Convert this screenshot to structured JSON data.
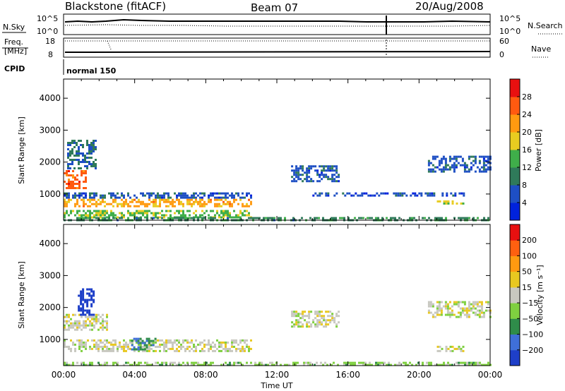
{
  "header": {
    "station": "Blackstone (fitACF)",
    "beam": "Beam 07",
    "date": "20/Aug/2008"
  },
  "top_panels": {
    "nsky_label": "N.Sky",
    "nsearch_label": "N.Search",
    "noise_ticks_left": [
      "10^5",
      "10^0"
    ],
    "noise_ticks_right": [
      "10^5",
      "10^0"
    ],
    "freq_label_line1": "Freq.",
    "freq_label_line2": "[MHz]",
    "freq_ticks": [
      "18",
      "8"
    ],
    "nave_label": "Nave",
    "nave_ticks": [
      "60",
      "0"
    ],
    "cpid_label": "CPID",
    "cpid_value": "normal 150"
  },
  "power_colorbar": {
    "label": "Power [dB]",
    "ticks": [
      "28",
      "24",
      "20",
      "16",
      "12",
      "8",
      "4"
    ],
    "colors": [
      "#0022dd",
      "#1e4fc4",
      "#2f7a5a",
      "#3fae4a",
      "#e8cc20",
      "#ff9a10",
      "#ff5a10",
      "#e81010"
    ]
  },
  "velocity_colorbar": {
    "label": "Velocity [m s⁻¹]",
    "ticks": [
      "200",
      "100",
      "50",
      "15",
      "−15",
      "−50",
      "−100",
      "−200"
    ],
    "colors": [
      "#1e3fc8",
      "#3f6fd8",
      "#2f8c4a",
      "#7fd040",
      "#c8c8c0",
      "#e8c820",
      "#ff9a10",
      "#ff6010",
      "#e81010"
    ]
  },
  "axes": {
    "y_label": "Slant Range [km]",
    "y_ticks": [
      "4000",
      "3000",
      "2000",
      "1000"
    ],
    "x_label": "Time UT",
    "x_ticks": [
      "00:00",
      "04:00",
      "08:00",
      "12:00",
      "16:00",
      "20:00",
      "00:00"
    ]
  },
  "chart_data": [
    {
      "type": "heatmap",
      "panel": "power",
      "xlabel": "Time UT",
      "ylabel": "Slant Range [km]",
      "xlim": [
        0,
        24
      ],
      "ylim": [
        180,
        4600
      ],
      "colorbar_label": "Power [dB]",
      "value_range": [
        0,
        30
      ],
      "echo_regions": [
        {
          "x0": 0.0,
          "x1": 1.3,
          "y0": 1200,
          "y1": 1750,
          "value": 24
        },
        {
          "x0": 0.2,
          "x1": 1.8,
          "y0": 1800,
          "y1": 2700,
          "value": 8
        },
        {
          "x0": 0.0,
          "x1": 10.5,
          "y0": 900,
          "y1": 1050,
          "value": 6
        },
        {
          "x0": 0.0,
          "x1": 10.5,
          "y0": 650,
          "y1": 850,
          "value": 20
        },
        {
          "x0": 0.0,
          "x1": 10.5,
          "y0": 300,
          "y1": 500,
          "value": 14
        },
        {
          "x0": 12.8,
          "x1": 15.5,
          "y0": 1400,
          "y1": 1900,
          "value": 6
        },
        {
          "x0": 14.0,
          "x1": 22.5,
          "y0": 950,
          "y1": 1050,
          "value": 5
        },
        {
          "x0": 21.0,
          "x1": 22.5,
          "y0": 700,
          "y1": 800,
          "value": 16
        },
        {
          "x0": 20.5,
          "x1": 24.0,
          "y0": 1700,
          "y1": 2200,
          "value": 6
        },
        {
          "x0": 0.0,
          "x1": 24.0,
          "y0": 180,
          "y1": 280,
          "value": 10
        }
      ]
    },
    {
      "type": "heatmap",
      "panel": "velocity",
      "xlabel": "Time UT",
      "ylabel": "Slant Range [km]",
      "xlim": [
        0,
        24
      ],
      "ylim": [
        180,
        4600
      ],
      "colorbar_label": "Velocity [m s⁻¹]",
      "value_range": [
        -200,
        200
      ],
      "echo_regions": [
        {
          "x0": 0.0,
          "x1": 2.5,
          "y0": 1300,
          "y1": 1800,
          "value": 0
        },
        {
          "x0": 0.8,
          "x1": 1.7,
          "y0": 1800,
          "y1": 2600,
          "value": -200
        },
        {
          "x0": 0.0,
          "x1": 10.5,
          "y0": 650,
          "y1": 1000,
          "value": 0
        },
        {
          "x0": 3.8,
          "x1": 5.2,
          "y0": 700,
          "y1": 1050,
          "value": -100
        },
        {
          "x0": 0.0,
          "x1": 24.0,
          "y0": 180,
          "y1": 300,
          "value": -40
        },
        {
          "x0": 12.8,
          "x1": 15.5,
          "y0": 1400,
          "y1": 1900,
          "value": 0
        },
        {
          "x0": 20.5,
          "x1": 24.0,
          "y0": 1700,
          "y1": 2200,
          "value": 0
        },
        {
          "x0": 21.0,
          "x1": 22.5,
          "y0": 650,
          "y1": 800,
          "value": 0
        }
      ]
    }
  ]
}
